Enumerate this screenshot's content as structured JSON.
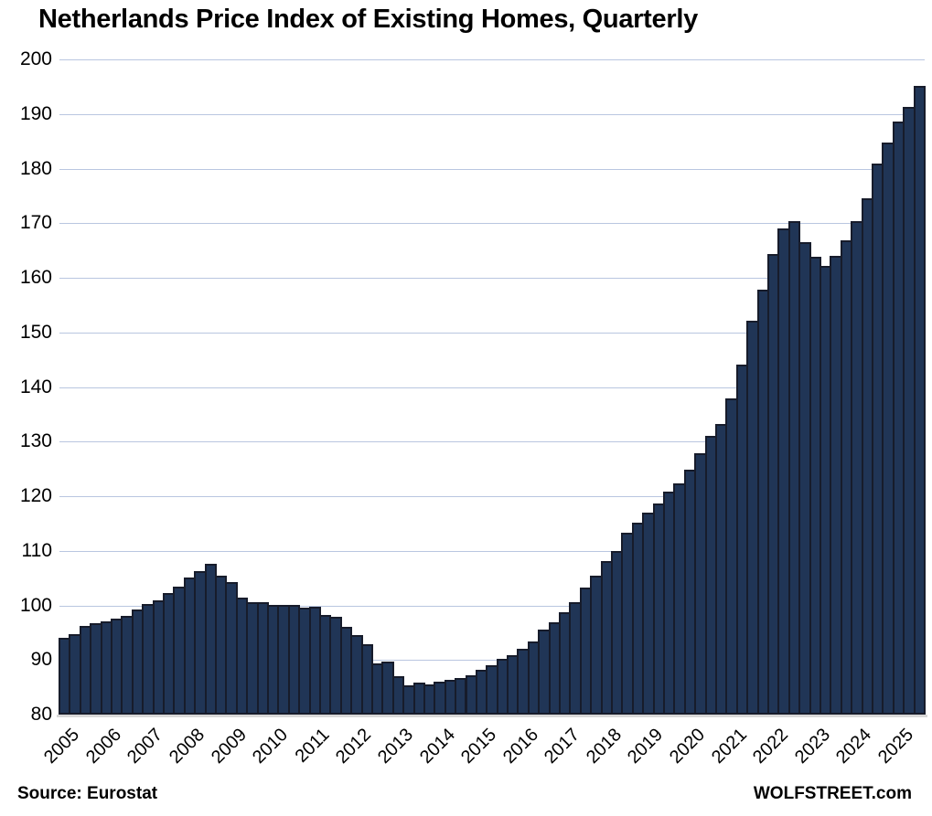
{
  "title": "Netherlands Price Index of Existing Homes, Quarterly",
  "footer": {
    "source": "Source: Eurostat",
    "site": "WOLFSTREET.com"
  },
  "colors": {
    "background": "#FFFFFF",
    "bar_fill": "#203556",
    "bar_border": "#171C2B",
    "gridline": "#B9C6E0",
    "axis_line": "#D8D8D8",
    "text": "#000000"
  },
  "y_axis": {
    "tick_labels": [
      "80",
      "90",
      "100",
      "110",
      "120",
      "130",
      "140",
      "150",
      "160",
      "170",
      "180",
      "190",
      "200"
    ]
  },
  "x_axis": {
    "year_labels": [
      "2005",
      "2006",
      "2007",
      "2008",
      "2009",
      "2010",
      "2011",
      "2012",
      "2013",
      "2014",
      "2015",
      "2016",
      "2017",
      "2018",
      "2019",
      "2020",
      "2021",
      "2022",
      "2023",
      "2024",
      "2025"
    ],
    "quarters_per_year": 4
  },
  "chart_data": {
    "type": "bar",
    "title": "Netherlands Price Index of Existing Homes, Quarterly",
    "frequency": "quarterly",
    "x_start": "2005-Q1",
    "x_end": "2025-Q3",
    "ylim": [
      80,
      200
    ],
    "y_step": 10,
    "grid": "horizontal",
    "legend": "none",
    "source": "Eurostat",
    "series": [
      {
        "name": "Price index of existing homes",
        "values": [
          94.1,
          94.8,
          96.3,
          96.7,
          97.0,
          97.5,
          98.1,
          99.2,
          100.2,
          100.9,
          102.3,
          103.4,
          105.1,
          106.3,
          107.7,
          105.4,
          104.2,
          101.5,
          100.6,
          100.6,
          100.1,
          100.1,
          100.1,
          99.6,
          99.8,
          98.3,
          97.9,
          96.1,
          94.6,
          92.9,
          89.4,
          89.7,
          87.1,
          85.3,
          85.8,
          85.6,
          86.0,
          86.4,
          86.7,
          87.2,
          88.2,
          89.0,
          90.2,
          90.9,
          92.0,
          93.4,
          95.5,
          96.9,
          98.8,
          100.6,
          103.2,
          105.5,
          108.1,
          109.9,
          113.3,
          115.2,
          117.0,
          118.7,
          120.8,
          122.3,
          124.8,
          127.8,
          131.0,
          133.2,
          137.9,
          144.1,
          152.2,
          157.9,
          164.3,
          169.0,
          170.4,
          166.6,
          163.9,
          162.2,
          164.0,
          166.9,
          170.3,
          174.6,
          180.9,
          184.8,
          188.6,
          191.3,
          195.2
        ]
      }
    ]
  }
}
